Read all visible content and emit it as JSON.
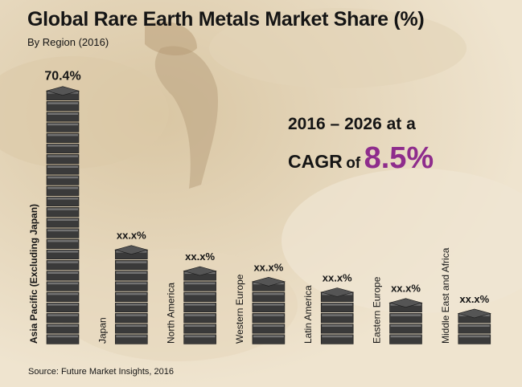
{
  "title": "Global Rare Earth Metals Market Share (%)",
  "subtitle": "By Region (2016)",
  "cagr": {
    "line1": "2016 – 2026 at a",
    "prefix": "CAGR",
    "of": "of",
    "value": "8.5%",
    "value_color": "#8e2c8c"
  },
  "source": "Source: Future Market Insights, 2016",
  "chart_data": {
    "type": "bar",
    "categories": [
      "Asia Pacific (Excluding Japan)",
      "Japan",
      "North America",
      "Western Europe",
      "Latin America",
      "Eastern Europe",
      "Middle East and Africa"
    ],
    "values": [
      70.4,
      null,
      null,
      null,
      null,
      null,
      null
    ],
    "data_labels": [
      "70.4%",
      "xx.x%",
      "xx.x%",
      "xx.x%",
      "xx.x%",
      "xx.x%",
      "xx.x%"
    ],
    "stack_blocks": [
      24,
      9,
      7,
      6,
      5,
      4,
      3
    ],
    "bar_color": "#3a3a3a"
  }
}
